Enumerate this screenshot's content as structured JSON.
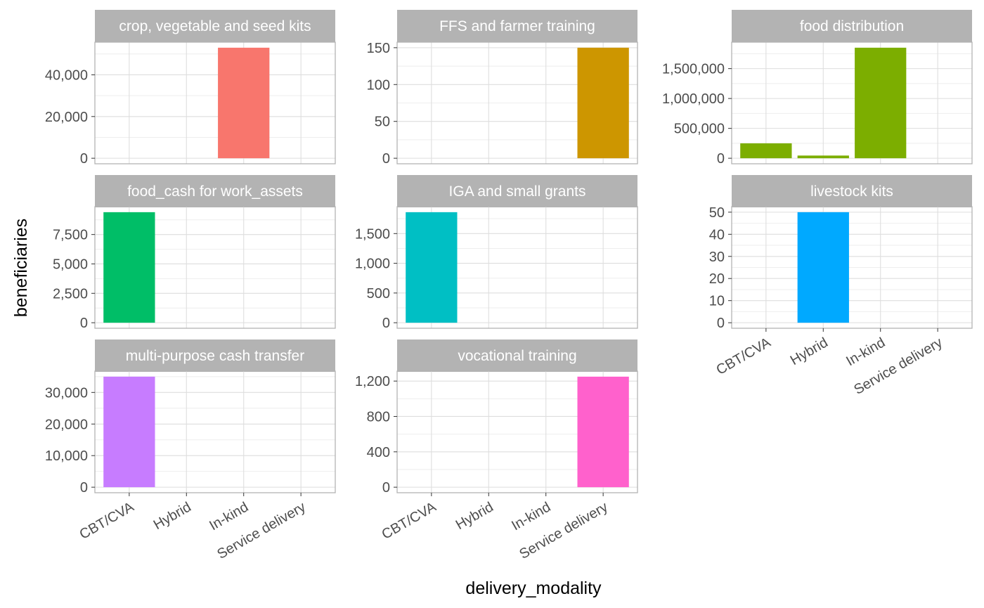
{
  "chart_data": {
    "type": "bar",
    "layout": "facet-wrap",
    "xlabel": "delivery_modality",
    "ylabel": "beneficiaries",
    "categories": [
      "CBT/CVA",
      "Hybrid",
      "In-kind",
      "Service delivery"
    ],
    "colors": {
      "strip_bg": "#b3b3b3",
      "panel_border": "#b3b3b3",
      "grid_major": "#dedede",
      "grid_minor": "#eeeeee"
    },
    "facets": [
      {
        "title": "crop, vegetable and seed kits",
        "values": [
          0,
          0,
          53000,
          0
        ],
        "color": "#F8766D",
        "ylim": [
          0,
          53000
        ],
        "yticks": [
          0,
          20000,
          40000
        ],
        "ytick_labels": [
          "0",
          "20,000",
          "40,000"
        ]
      },
      {
        "title": "FFS and farmer training",
        "values": [
          0,
          0,
          0,
          150
        ],
        "color": "#CD9600",
        "ylim": [
          0,
          150
        ],
        "yticks": [
          0,
          50,
          100,
          150
        ],
        "ytick_labels": [
          "0",
          "50",
          "100",
          "150"
        ]
      },
      {
        "title": "food distribution",
        "values": [
          250000,
          45000,
          1850000,
          0
        ],
        "color": "#7CAE00",
        "ylim": [
          0,
          1850000
        ],
        "yticks": [
          0,
          500000,
          1000000,
          1500000
        ],
        "ytick_labels": [
          "0",
          "500,000",
          "1,000,000",
          "1,500,000"
        ]
      },
      {
        "title": "food_cash for work_assets",
        "values": [
          9400,
          0,
          0,
          0
        ],
        "color": "#00BE67",
        "ylim": [
          0,
          9400
        ],
        "yticks": [
          0,
          2500,
          5000,
          7500
        ],
        "ytick_labels": [
          "0",
          "2,500",
          "5,000",
          "7,500"
        ]
      },
      {
        "title": "IGA and small grants",
        "values": [
          1860,
          0,
          0,
          0
        ],
        "color": "#00BFC4",
        "ylim": [
          0,
          1860
        ],
        "yticks": [
          0,
          500,
          1000,
          1500
        ],
        "ytick_labels": [
          "0",
          "500",
          "1,000",
          "1,500"
        ]
      },
      {
        "title": "livestock kits",
        "values": [
          0,
          50,
          0,
          0
        ],
        "color": "#00A9FF",
        "ylim": [
          0,
          50
        ],
        "yticks": [
          0,
          10,
          20,
          30,
          40,
          50
        ],
        "ytick_labels": [
          "0",
          "10",
          "20",
          "30",
          "40",
          "50"
        ]
      },
      {
        "title": "multi-purpose cash transfer",
        "values": [
          35000,
          0,
          0,
          0
        ],
        "color": "#C77CFF",
        "ylim": [
          0,
          35000
        ],
        "yticks": [
          0,
          10000,
          20000,
          30000
        ],
        "ytick_labels": [
          "0",
          "10,000",
          "20,000",
          "30,000"
        ]
      },
      {
        "title": "vocational training",
        "values": [
          0,
          0,
          0,
          1250
        ],
        "color": "#FF61CC",
        "ylim": [
          0,
          1250
        ],
        "yticks": [
          0,
          400,
          800,
          1200
        ],
        "ytick_labels": [
          "0",
          "400",
          "800",
          "1,200"
        ]
      }
    ]
  }
}
